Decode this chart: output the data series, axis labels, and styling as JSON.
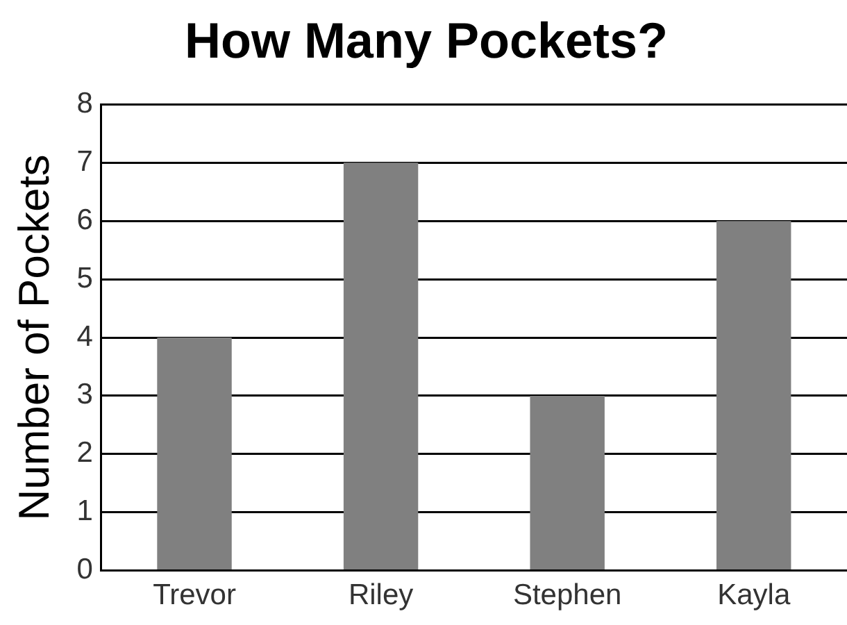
{
  "chart_data": {
    "type": "bar",
    "title": "How Many Pockets?",
    "ylabel": "Number of Pockets",
    "categories": [
      "Trevor",
      "Riley",
      "Stephen",
      "Kayla"
    ],
    "values": [
      4,
      7,
      3,
      6
    ],
    "color": "#808080",
    "ylim": [
      0,
      8
    ],
    "yticks": [
      0,
      1,
      2,
      3,
      4,
      5,
      6,
      7,
      8
    ],
    "grid": "y",
    "legend": false
  }
}
